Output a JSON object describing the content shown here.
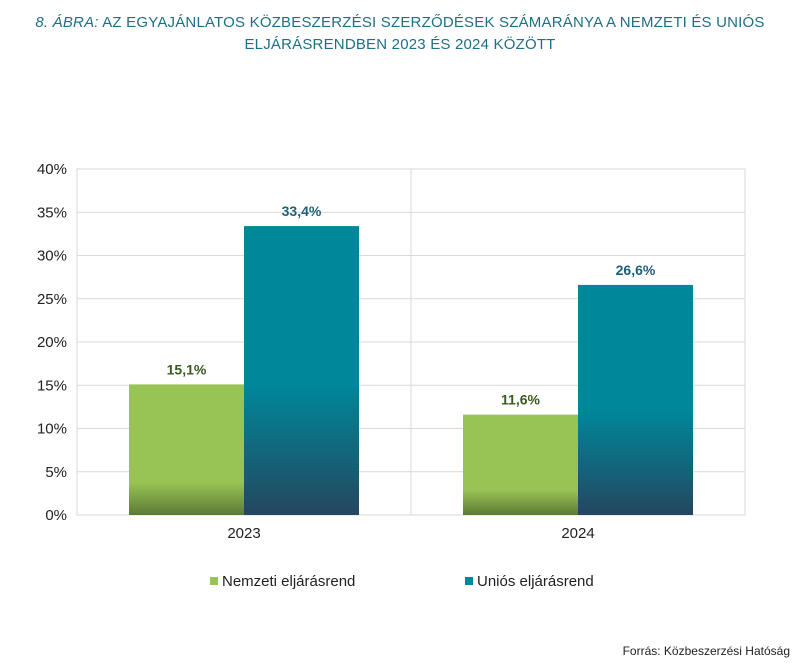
{
  "header": {
    "title_prefix": "8. ÁBRA:",
    "title_line1": "AZ EGYAJÁNLATOS KÖZBESZERZÉSI SZERZŐDÉSEK SZÁMARÁNYA A NEMZETI ÉS UNIÓS",
    "title_line2": "ELJÁRÁSRENDBEN 2023 ÉS 2024 KÖZÖTT"
  },
  "footer": {
    "source": "Forrás: Közbeszerzési Hatóság"
  },
  "colors": {
    "title": "#1f6f86",
    "nemzeti": "#98c455",
    "unios": "#00879a",
    "nemzeti_label": "#3b5a1d",
    "unios_label": "#1f5f78",
    "grid": "#d9d9d9"
  },
  "chart_data": {
    "type": "bar",
    "categories": [
      "2023",
      "2024"
    ],
    "series": [
      {
        "name": "Nemzeti eljárásrend",
        "values": [
          15.1,
          11.6
        ],
        "labels": [
          "15,1%",
          "11,6%"
        ],
        "color": "#98c455"
      },
      {
        "name": "Uniós eljárásrend",
        "values": [
          33.4,
          26.6
        ],
        "labels": [
          "33,4%",
          "26,6%"
        ],
        "color": "#00879a"
      }
    ],
    "ylim": [
      0,
      40
    ],
    "yticks": [
      0,
      5,
      10,
      15,
      20,
      25,
      30,
      35,
      40
    ],
    "ytick_labels": [
      "0%",
      "5%",
      "10%",
      "15%",
      "20%",
      "25%",
      "30%",
      "35%",
      "40%"
    ],
    "grid": true,
    "legend_position": "bottom"
  }
}
